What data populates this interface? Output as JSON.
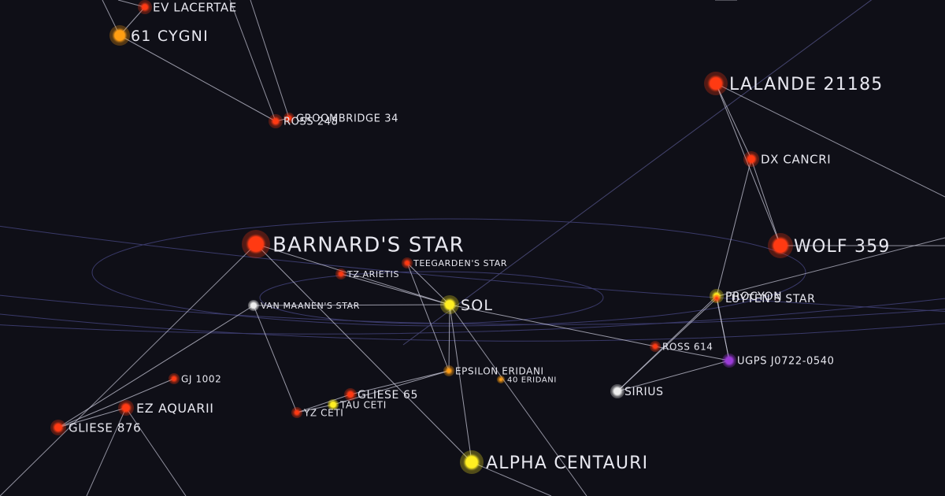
{
  "map": {
    "colors": {
      "background": "#0f0f17",
      "grid_ring": "#3a3a6a",
      "link": "#c8c8d8",
      "red_dwarf": "#ff3a12",
      "orange_star": "#ff9e12",
      "yellow_star": "#ffee22",
      "white_dwarf": "#eeeeee",
      "brown_dwarf": "#9b3bd8"
    },
    "stars": [
      {
        "id": "ev-lacertae",
        "name": "EV LACERTAE",
        "class": "red_dwarf"
      },
      {
        "id": "61-cygni",
        "name": "61 CYGNI",
        "class": "orange_star"
      },
      {
        "id": "groombridge-34",
        "name": "GROOMBRIDGE 34",
        "class": "red_dwarf"
      },
      {
        "id": "ross-248",
        "name": "ROSS 248",
        "class": "red_dwarf"
      },
      {
        "id": "lalande-21185",
        "name": "LALANDE 21185",
        "class": "red_dwarf"
      },
      {
        "id": "dx-cancri",
        "name": "DX CANCRI",
        "class": "red_dwarf"
      },
      {
        "id": "wolf-359",
        "name": "WOLF 359",
        "class": "red_dwarf"
      },
      {
        "id": "barnards-star",
        "name": "BARNARD'S STAR",
        "class": "red_dwarf"
      },
      {
        "id": "teegardens-star",
        "name": "TEEGARDEN'S STAR",
        "class": "red_dwarf"
      },
      {
        "id": "tz-arietis",
        "name": "TZ ARIETIS",
        "class": "red_dwarf"
      },
      {
        "id": "van-maanens-star",
        "name": "VAN MAANEN'S STAR",
        "class": "white_dwarf"
      },
      {
        "id": "sol",
        "name": "SOL",
        "class": "yellow_star"
      },
      {
        "id": "procyon",
        "name": "PROCYON",
        "class": "yellow_star"
      },
      {
        "id": "luytens-star",
        "name": "LUYTEN'S STAR",
        "class": "red_dwarf"
      },
      {
        "id": "ross-614",
        "name": "ROSS 614",
        "class": "red_dwarf"
      },
      {
        "id": "ugps-j0722",
        "name": "UGPS J0722-0540",
        "class": "brown_dwarf"
      },
      {
        "id": "sirius",
        "name": "SIRIUS",
        "class": "white_dwarf"
      },
      {
        "id": "gj-1002",
        "name": "GJ 1002",
        "class": "red_dwarf"
      },
      {
        "id": "epsilon-eridani",
        "name": "EPSILON ERIDANI",
        "class": "orange_star"
      },
      {
        "id": "40-eridani",
        "name": "40 ERIDANI",
        "class": "orange_star"
      },
      {
        "id": "gliese-65",
        "name": "GLIESE 65",
        "class": "red_dwarf"
      },
      {
        "id": "tau-ceti",
        "name": "TAU CETI",
        "class": "yellow_star"
      },
      {
        "id": "yz-ceti",
        "name": "YZ CETI",
        "class": "red_dwarf"
      },
      {
        "id": "ez-aquarii",
        "name": "EZ AQUARII",
        "class": "red_dwarf"
      },
      {
        "id": "gliese-876",
        "name": "GLIESE 876",
        "class": "red_dwarf"
      },
      {
        "id": "alpha-centauri",
        "name": "ALPHA CENTAURI",
        "class": "yellow_star"
      }
    ],
    "links": [
      [
        "ev-lacertae",
        "61-cygni"
      ],
      [
        "61-cygni",
        "ross-248"
      ],
      [
        "ross-248",
        "groombridge-34"
      ],
      [
        "lalande-21185",
        "dx-cancri"
      ],
      [
        "lalande-21185",
        "wolf-359"
      ],
      [
        "dx-cancri",
        "wolf-359"
      ],
      [
        "dx-cancri",
        "procyon"
      ],
      [
        "barnards-star",
        "sol"
      ],
      [
        "barnards-star",
        "alpha-centauri"
      ],
      [
        "sol",
        "van-maanens-star"
      ],
      [
        "sol",
        "teegardens-star"
      ],
      [
        "sol",
        "tz-arietis"
      ],
      [
        "sol",
        "epsilon-eridani"
      ],
      [
        "sol",
        "alpha-centauri"
      ],
      [
        "sol",
        "ross-614"
      ],
      [
        "van-maanens-star",
        "yz-ceti"
      ],
      [
        "van-maanens-star",
        "gliese-876"
      ],
      [
        "teegardens-star",
        "epsilon-eridani"
      ],
      [
        "epsilon-eridani",
        "tau-ceti"
      ],
      [
        "epsilon-eridani",
        "gliese-65"
      ],
      [
        "tau-ceti",
        "yz-ceti"
      ],
      [
        "gliese-65",
        "yz-ceti"
      ],
      [
        "gj-1002",
        "gliese-876"
      ],
      [
        "ez-aquarii",
        "gliese-876"
      ],
      [
        "procyon",
        "sirius"
      ],
      [
        "procyon",
        "ugps-j0722"
      ],
      [
        "luytens-star",
        "sirius"
      ],
      [
        "luytens-star",
        "ugps-j0722"
      ],
      [
        "ross-614",
        "ugps-j0722"
      ],
      [
        "ugps-j0722",
        "sirius"
      ]
    ]
  }
}
